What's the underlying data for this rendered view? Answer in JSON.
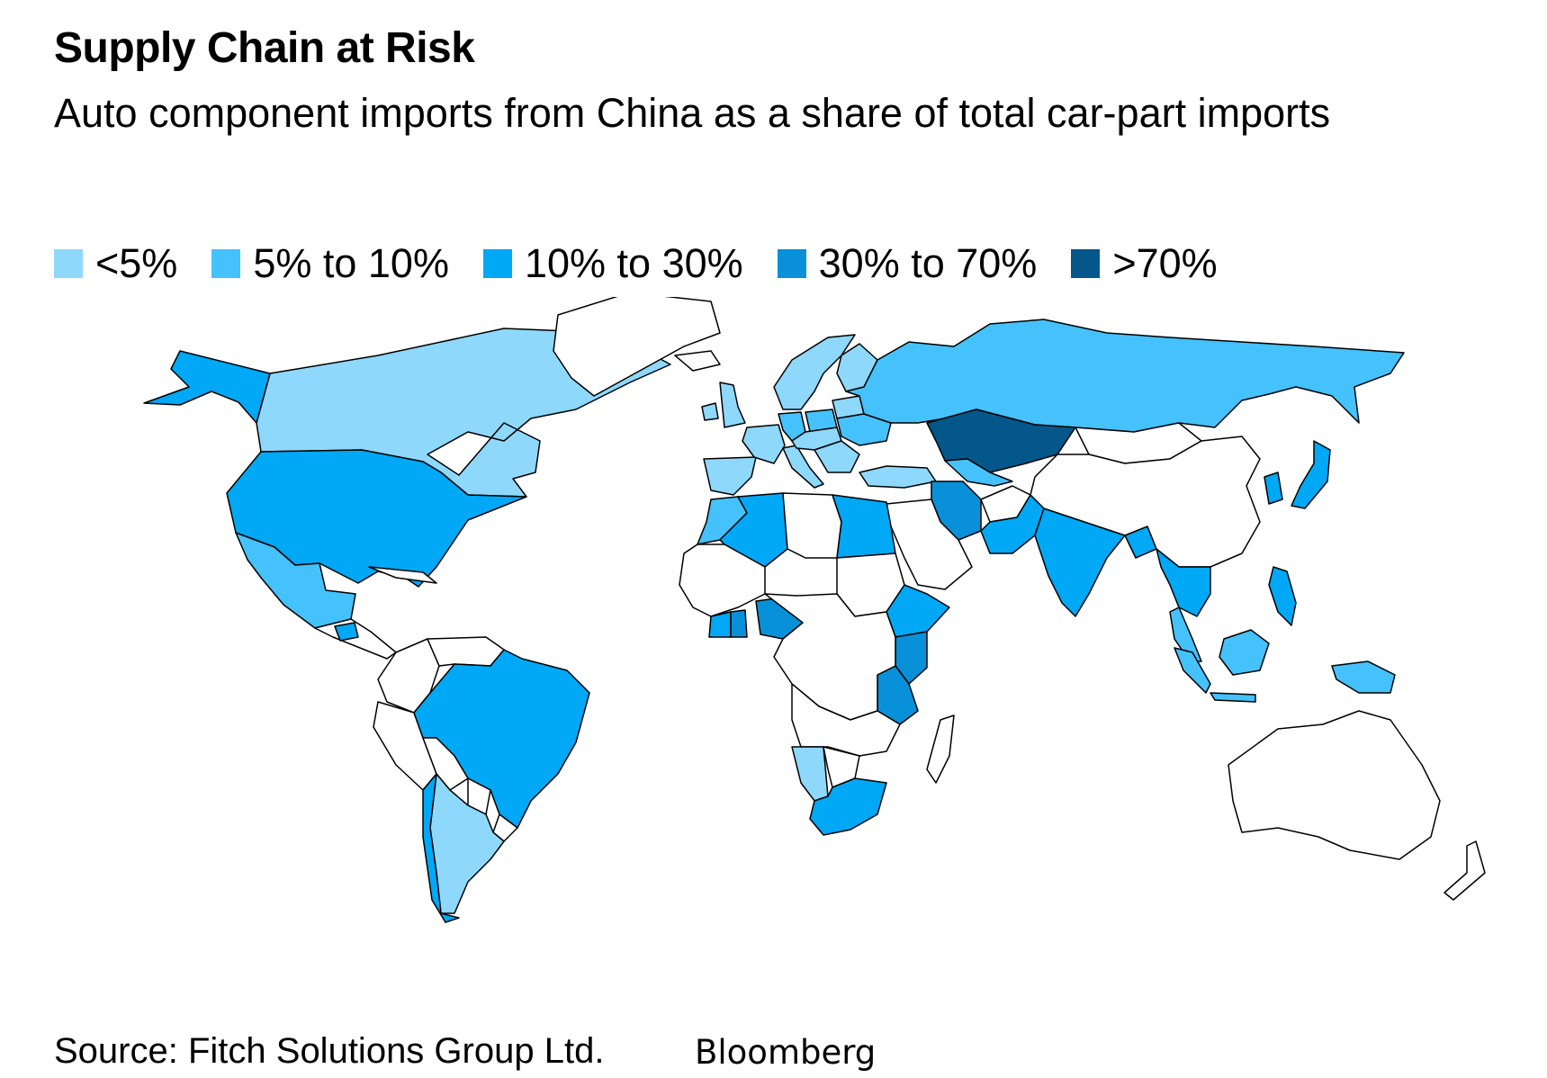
{
  "header": {
    "title": "Supply Chain at Risk",
    "subtitle": "Auto component imports from China as a share of total car-part imports"
  },
  "legend": {
    "items": [
      {
        "label": "<5%",
        "color": "#8ed8fb"
      },
      {
        "label": "5% to 10%",
        "color": "#45c1fb"
      },
      {
        "label": "10% to 30%",
        "color": "#00a8f5"
      },
      {
        "label": "30% to 70%",
        "color": "#0891d8"
      },
      {
        "label": ">70%",
        "color": "#03578a"
      }
    ]
  },
  "map": {
    "no_data_color": "#ffffff",
    "border_color": "#000000",
    "regions": [
      {
        "id": "canada",
        "bin": 0
      },
      {
        "id": "alaska",
        "bin": 2
      },
      {
        "id": "usa",
        "bin": 2
      },
      {
        "id": "mexico",
        "bin": 1
      },
      {
        "id": "greenland",
        "bin": -1
      },
      {
        "id": "central-america",
        "bin": -1
      },
      {
        "id": "guatemala",
        "bin": 2
      },
      {
        "id": "cuba",
        "bin": -1
      },
      {
        "id": "colombia",
        "bin": -1
      },
      {
        "id": "venezuela",
        "bin": -1
      },
      {
        "id": "brazil",
        "bin": 2
      },
      {
        "id": "peru",
        "bin": -1
      },
      {
        "id": "bolivia",
        "bin": -1
      },
      {
        "id": "paraguay",
        "bin": -1
      },
      {
        "id": "argentina",
        "bin": 0
      },
      {
        "id": "chile",
        "bin": 2
      },
      {
        "id": "uruguay",
        "bin": -1
      },
      {
        "id": "iceland",
        "bin": -1
      },
      {
        "id": "uk",
        "bin": 0
      },
      {
        "id": "ireland",
        "bin": 0
      },
      {
        "id": "scandinavia",
        "bin": 0
      },
      {
        "id": "finland",
        "bin": 0
      },
      {
        "id": "iberia",
        "bin": 0
      },
      {
        "id": "france",
        "bin": 0
      },
      {
        "id": "germany",
        "bin": 1
      },
      {
        "id": "italy",
        "bin": 0
      },
      {
        "id": "poland",
        "bin": 1
      },
      {
        "id": "central-europe",
        "bin": 0
      },
      {
        "id": "balkans",
        "bin": 0
      },
      {
        "id": "ukraine",
        "bin": 1
      },
      {
        "id": "belarus",
        "bin": 0
      },
      {
        "id": "russia",
        "bin": 1
      },
      {
        "id": "turkey",
        "bin": 0
      },
      {
        "id": "kazakhstan",
        "bin": 4
      },
      {
        "id": "uzbekistan",
        "bin": 1
      },
      {
        "id": "iran",
        "bin": 3
      },
      {
        "id": "pakistan",
        "bin": 2
      },
      {
        "id": "afghanistan",
        "bin": -1
      },
      {
        "id": "india",
        "bin": 2
      },
      {
        "id": "bangladesh",
        "bin": 2
      },
      {
        "id": "china",
        "bin": -1
      },
      {
        "id": "mongolia",
        "bin": -1
      },
      {
        "id": "korea",
        "bin": 2
      },
      {
        "id": "japan",
        "bin": 2
      },
      {
        "id": "indochina",
        "bin": 2
      },
      {
        "id": "malay-peninsula",
        "bin": 1
      },
      {
        "id": "philippines",
        "bin": 2
      },
      {
        "id": "borneo",
        "bin": 1
      },
      {
        "id": "sumatra",
        "bin": 1
      },
      {
        "id": "java",
        "bin": 1
      },
      {
        "id": "new-guinea",
        "bin": 1
      },
      {
        "id": "arabia",
        "bin": -1
      },
      {
        "id": "morocco",
        "bin": 1
      },
      {
        "id": "algeria",
        "bin": 2
      },
      {
        "id": "libya",
        "bin": -1
      },
      {
        "id": "egypt",
        "bin": 2
      },
      {
        "id": "west-africa",
        "bin": -1
      },
      {
        "id": "ivory-coast",
        "bin": 2
      },
      {
        "id": "ghana",
        "bin": 3
      },
      {
        "id": "nigeria",
        "bin": 3
      },
      {
        "id": "sudan",
        "bin": -1
      },
      {
        "id": "ethiopia",
        "bin": 2
      },
      {
        "id": "kenya",
        "bin": 3
      },
      {
        "id": "tanzania",
        "bin": 3
      },
      {
        "id": "central-africa",
        "bin": -1
      },
      {
        "id": "angola-zambia",
        "bin": -1
      },
      {
        "id": "namibia",
        "bin": 0
      },
      {
        "id": "botswana",
        "bin": -1
      },
      {
        "id": "south-africa",
        "bin": 2
      },
      {
        "id": "madagascar",
        "bin": -1
      },
      {
        "id": "australia",
        "bin": -1
      },
      {
        "id": "new-zealand",
        "bin": -1
      }
    ]
  },
  "footer": {
    "source": "Source: Fitch Solutions Group Ltd.",
    "brand": "Bloomberg"
  }
}
